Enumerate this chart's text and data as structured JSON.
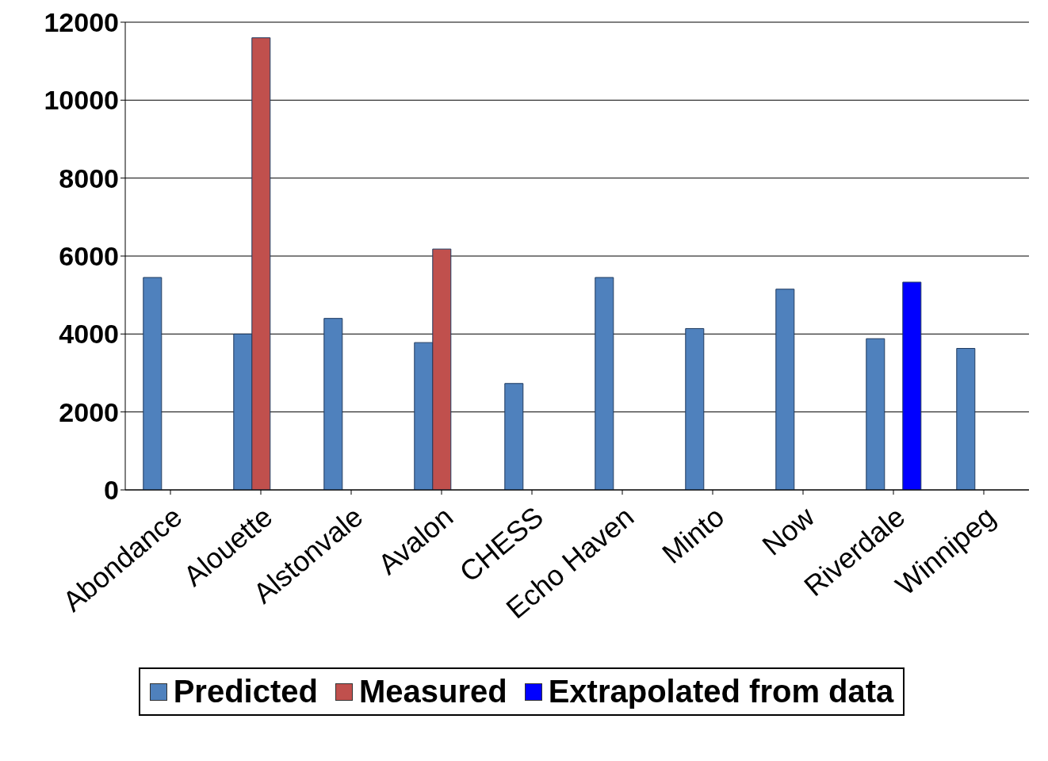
{
  "chart_data": {
    "type": "bar",
    "categories": [
      "Abondance",
      "Alouette",
      "Alstonvale",
      "Avalon",
      "CHESS",
      "Echo Haven",
      "Minto",
      "Now",
      "Riverdale",
      "Winnipeg"
    ],
    "series": [
      {
        "name": "Predicted",
        "color": "#4f81bd",
        "values": [
          5450,
          4000,
          4400,
          3780,
          2730,
          5450,
          4140,
          5150,
          3880,
          3630
        ]
      },
      {
        "name": "Measured",
        "color": "#c0504d",
        "values": [
          null,
          11600,
          null,
          6180,
          null,
          null,
          null,
          null,
          null,
          null
        ]
      },
      {
        "name": "Extrapolated from data",
        "color": "#0000ff",
        "values": [
          null,
          null,
          null,
          null,
          null,
          null,
          null,
          null,
          5330,
          null
        ]
      }
    ],
    "ylim": [
      0,
      12000
    ],
    "yticks": [
      0,
      2000,
      4000,
      6000,
      8000,
      10000,
      12000
    ],
    "grid": "y",
    "legend": "bottom"
  }
}
